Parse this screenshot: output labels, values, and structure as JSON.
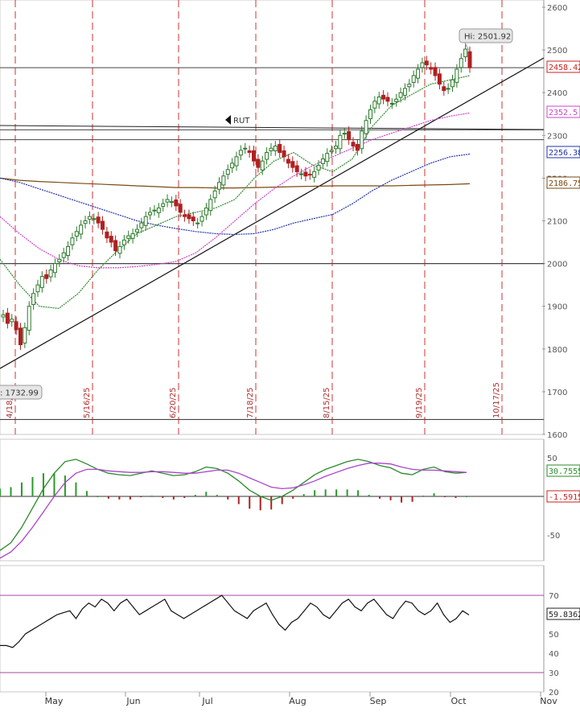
{
  "chart_data": [
    {
      "panel": "price",
      "type": "candlestick",
      "x_axis_months": [
        "May",
        "Jun",
        "Jul",
        "Aug",
        "Sep",
        "Oct",
        "Nov"
      ],
      "ylim": [
        1600,
        2600
      ],
      "yticks": [
        1600,
        1700,
        1800,
        1900,
        2000,
        2100,
        2200,
        2300,
        2400,
        2500,
        2600
      ],
      "vertical_event_labels": [
        "4/18/",
        "5/16/25",
        "6/20/25",
        "7/18/25",
        "8/15/25",
        "9/19/25",
        "10/17/25"
      ],
      "horizontal_levels": [
        2458.42,
        2313,
        2290,
        2000,
        1635
      ],
      "annotations": {
        "high_label": "Hi: 2501.92",
        "low_label": ": 1732.99",
        "symbol_label": "RUT"
      },
      "value_tags": [
        {
          "text": "2458.42",
          "value": 2458.42,
          "color": "#cc2222"
        },
        {
          "text": "2352.5",
          "value": 2352.5,
          "color": "#cc44cc"
        },
        {
          "text": "2256.38",
          "value": 2256.38,
          "color": "#2233aa"
        },
        {
          "text": "2186.75",
          "value": 2186.75,
          "color": "#7a4a10"
        }
      ],
      "series": [
        {
          "name": "close",
          "values": [
            1880,
            1860,
            1870,
            1845,
            1810,
            1850,
            1900,
            1930,
            1950,
            1970,
            1965,
            1985,
            2000,
            2010,
            2025,
            2040,
            2060,
            2075,
            2090,
            2100,
            2110,
            2105,
            2095,
            2080,
            2060,
            2050,
            2030,
            2040,
            2055,
            2065,
            2070,
            2080,
            2095,
            2110,
            2120,
            2125,
            2130,
            2140,
            2150,
            2145,
            2135,
            2120,
            2110,
            2105,
            2100,
            2095,
            2110,
            2130,
            2150,
            2170,
            2190,
            2205,
            2220,
            2235,
            2250,
            2265,
            2270,
            2260,
            2240,
            2225,
            2240,
            2260,
            2270,
            2275,
            2260,
            2250,
            2235,
            2225,
            2215,
            2210,
            2205,
            2208,
            2215,
            2230,
            2245,
            2258,
            2265,
            2275,
            2300,
            2305,
            2290,
            2275,
            2265,
            2310,
            2335,
            2360,
            2380,
            2390,
            2385,
            2380,
            2375,
            2385,
            2400,
            2410,
            2420,
            2440,
            2455,
            2470,
            2465,
            2455,
            2440,
            2420,
            2405,
            2410,
            2430,
            2455,
            2480,
            2501.92,
            2458.42
          ]
        }
      ],
      "moving_averages": [
        {
          "name": "ma_brown",
          "color": "#7a4a10",
          "end_value": 2186.75
        },
        {
          "name": "ma_blue",
          "color": "#2233aa",
          "end_value": 2256.38
        },
        {
          "name": "ma_magenta",
          "color": "#cc44cc",
          "end_value": 2352.5
        },
        {
          "name": "ma_green",
          "color": "#2a8a2a"
        }
      ]
    },
    {
      "panel": "macd",
      "type": "line+histogram",
      "yticks": [
        50,
        -50
      ],
      "value_tags": [
        {
          "text": "30.7555",
          "value": 30.7555,
          "color": "#2a8a2a"
        },
        {
          "text": "-1.5915",
          "value": -1.5915,
          "color": "#cc2222"
        }
      ],
      "macd_values": [
        -70,
        -60,
        -40,
        -15,
        10,
        30,
        45,
        48,
        42,
        35,
        30,
        28,
        27,
        30,
        33,
        30,
        27,
        28,
        32,
        38,
        36,
        30,
        20,
        8,
        0,
        -5,
        0,
        8,
        18,
        28,
        35,
        40,
        45,
        48,
        45,
        40,
        37,
        30,
        28,
        35,
        38,
        32,
        30,
        31
      ],
      "signal_values": [
        -80,
        -72,
        -58,
        -40,
        -20,
        0,
        18,
        30,
        35,
        35,
        33,
        32,
        31,
        31,
        32,
        32,
        31,
        30,
        30,
        32,
        34,
        34,
        30,
        24,
        18,
        12,
        10,
        11,
        15,
        20,
        26,
        31,
        36,
        40,
        43,
        43,
        42,
        38,
        35,
        34,
        34,
        33,
        32,
        31
      ]
    },
    {
      "panel": "rsi",
      "type": "line",
      "yticks": [
        20,
        30,
        40,
        50,
        60,
        70
      ],
      "levels": [
        70,
        30
      ],
      "value_tags": [
        {
          "text": "59.8362",
          "value": 59.8362,
          "color": "#222222"
        }
      ],
      "values": [
        44,
        44,
        43,
        46,
        50,
        52,
        54,
        56,
        58,
        60,
        61,
        62,
        58,
        63,
        66,
        64,
        68,
        66,
        62,
        66,
        68,
        64,
        60,
        62,
        64,
        66,
        68,
        62,
        60,
        58,
        60,
        62,
        64,
        66,
        68,
        70,
        66,
        62,
        60,
        58,
        62,
        64,
        66,
        60,
        55,
        52,
        56,
        58,
        62,
        66,
        64,
        60,
        58,
        62,
        66,
        68,
        64,
        62,
        66,
        68,
        64,
        60,
        58,
        63,
        67,
        66,
        62,
        60,
        62,
        66,
        60,
        56,
        58,
        62,
        59.8362
      ]
    },
    {
      "panel": "macd_overlay_placeholder",
      "type": "note",
      "text": ""
    }
  ]
}
